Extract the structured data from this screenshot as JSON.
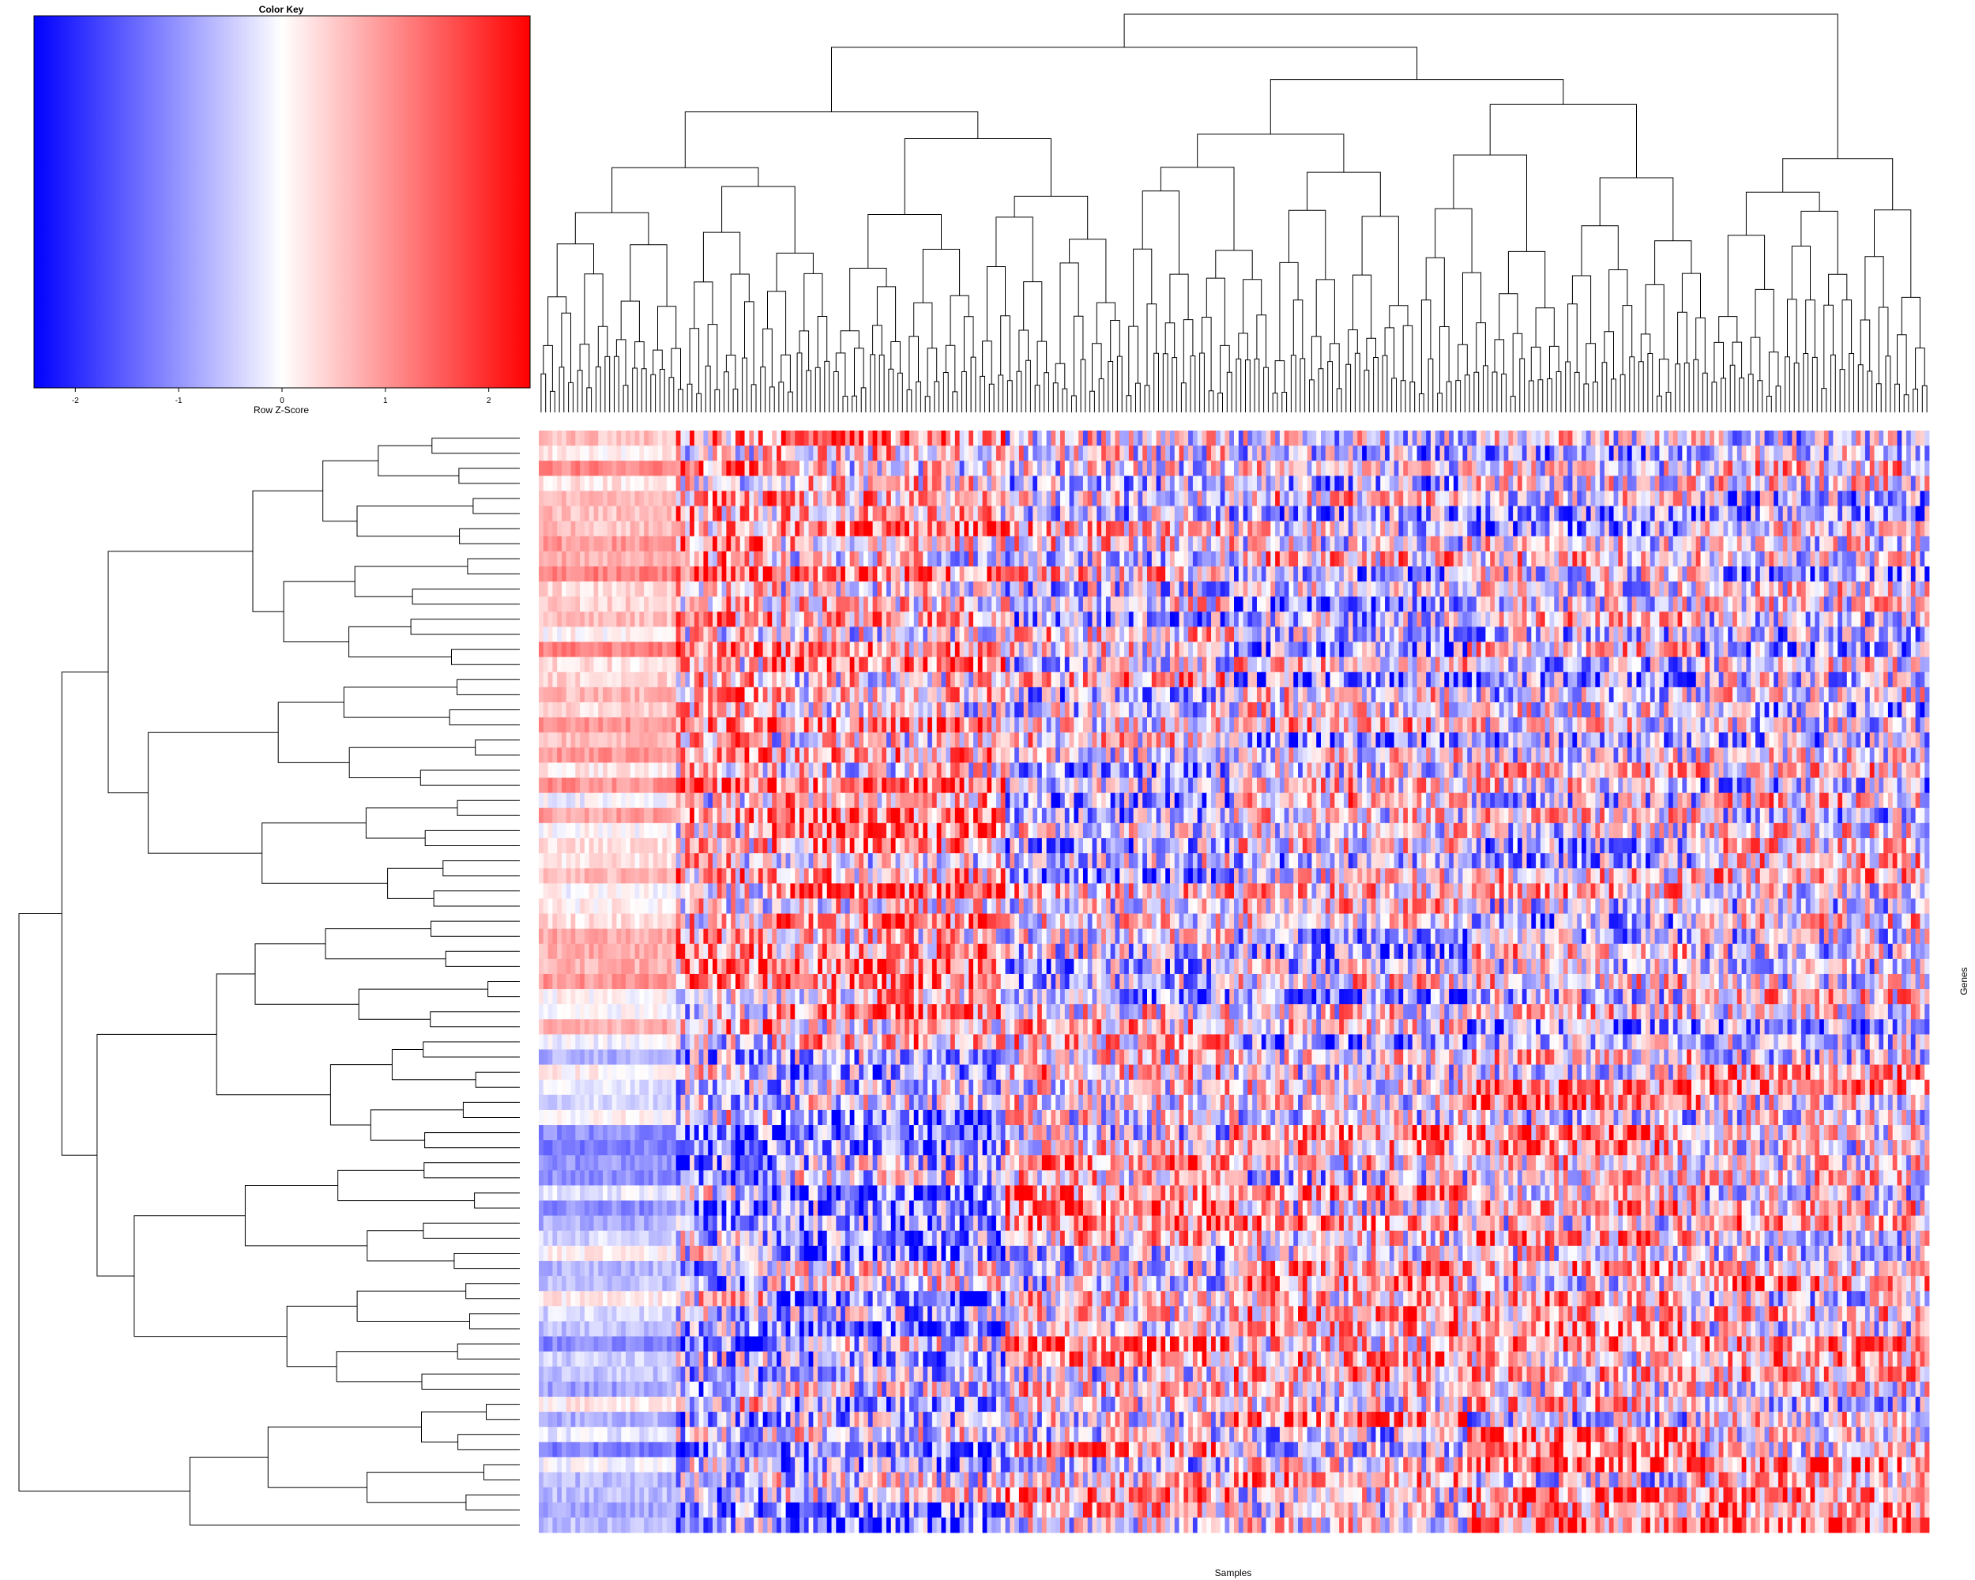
{
  "chart_data": {
    "type": "heatmap",
    "title": "",
    "xlabel": "Samples",
    "ylabel": "Genes",
    "n_rows": 73,
    "n_cols": 304,
    "row_dendrogram": true,
    "col_dendrogram": true,
    "color_key": {
      "title": "Color Key",
      "xlabel": "Row Z-Score",
      "ticks": [
        -2,
        -1,
        0,
        1,
        2
      ],
      "range": [
        -2.4,
        2.4
      ],
      "low_color": "#0000ff",
      "mid_color": "#ffffff",
      "high_color": "#ff0000"
    }
  }
}
